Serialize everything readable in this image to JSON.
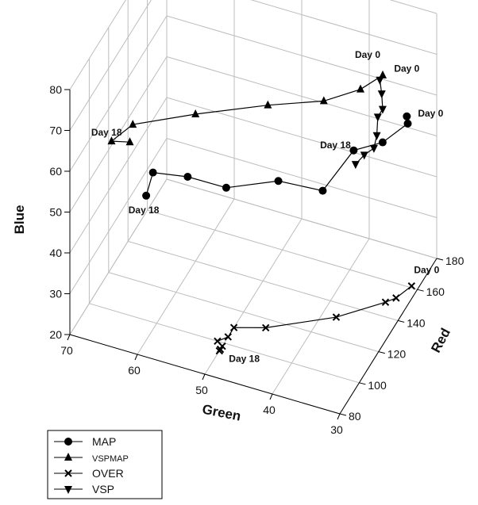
{
  "chart_data": {
    "type": "scatter",
    "subtype": "3d-line",
    "axes": {
      "x": {
        "label": "Green",
        "range": [
          30,
          70
        ],
        "ticks": [
          "30",
          "40",
          "50",
          "60",
          "70"
        ]
      },
      "y": {
        "label": "Red",
        "range": [
          80,
          180
        ],
        "ticks": [
          "80",
          "100",
          "120",
          "140",
          "160",
          "180"
        ]
      },
      "z": {
        "label": "Blue",
        "range": [
          20,
          80
        ],
        "ticks": [
          "20",
          "30",
          "40",
          "50",
          "60",
          "70",
          "80"
        ]
      }
    },
    "grid": true,
    "legend": {
      "position": "bottom-left"
    },
    "series": [
      {
        "name": "MAP",
        "marker": "circle",
        "points": [
          [
            34,
            177,
            54
          ],
          [
            33,
            171,
            55
          ],
          [
            35,
            159,
            54
          ],
          [
            38,
            150,
            54
          ],
          [
            40,
            132,
            50
          ],
          [
            46,
            128,
            51
          ],
          [
            52,
            116,
            51
          ],
          [
            58,
            118,
            50
          ],
          [
            63,
            117,
            49
          ],
          [
            63,
            110,
            46
          ]
        ]
      },
      {
        "name": "VSPMAP",
        "marker": "triangle-up",
        "points": [
          [
            38,
            180,
            61
          ],
          [
            40,
            171,
            60
          ],
          [
            44,
            161,
            59
          ],
          [
            51,
            152,
            58
          ],
          [
            60,
            140,
            56
          ],
          [
            68,
            131,
            53
          ],
          [
            70,
            123,
            51
          ],
          [
            67,
            121,
            53
          ]
        ]
      },
      {
        "name": "OVER",
        "marker": "x",
        "points": [
          [
            31,
            161,
            20
          ],
          [
            32,
            152,
            20
          ],
          [
            33,
            148,
            20
          ],
          [
            38,
            132,
            20
          ],
          [
            46,
            115,
            20
          ],
          [
            50,
            110,
            20
          ],
          [
            50,
            104,
            20
          ],
          [
            51,
            100,
            20
          ],
          [
            50,
            98,
            20
          ],
          [
            50,
            96,
            20
          ],
          [
            50,
            95,
            20
          ]
        ]
      },
      {
        "name": "VSP",
        "marker": "triangle-down",
        "points": [
          [
            38,
            177,
            61
          ],
          [
            37,
            172,
            60
          ],
          [
            36,
            166,
            59
          ],
          [
            36,
            161,
            59
          ],
          [
            35,
            153,
            58
          ],
          [
            35,
            150,
            56
          ],
          [
            36,
            147,
            55
          ],
          [
            37,
            145,
            53
          ]
        ]
      }
    ],
    "annotations": [
      {
        "text": "Day 0",
        "near": "VSPMAP"
      },
      {
        "text": "Day 0",
        "near": "VSP"
      },
      {
        "text": "Day 0",
        "near": "MAP"
      },
      {
        "text": "Day 0",
        "near": "OVER"
      },
      {
        "text": "Day 18",
        "near": "VSPMAP"
      },
      {
        "text": "Day 18",
        "near": "VSP"
      },
      {
        "text": "Day 18",
        "near": "MAP"
      },
      {
        "text": "Day 18",
        "near": "OVER"
      }
    ]
  }
}
